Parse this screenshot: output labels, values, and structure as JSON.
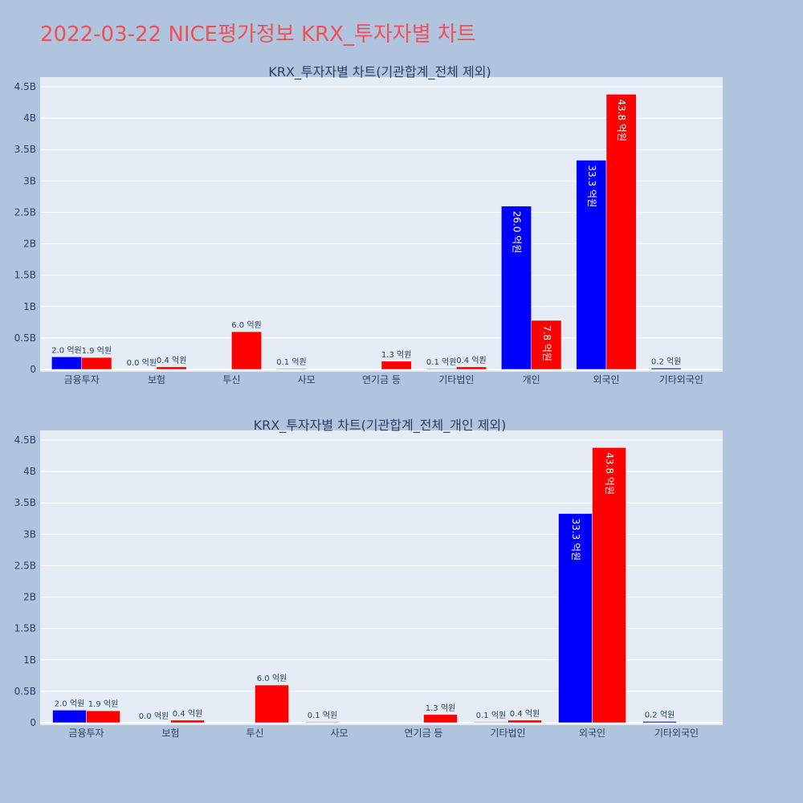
{
  "title": "2022-03-22 NICE평가정보 KRX_투자자별 차트",
  "colors": {
    "buy": "#0000ff",
    "sell": "#ff0000",
    "plot_bg": "#e5ecf6",
    "page_bg": "#b0c4de"
  },
  "chart_data": [
    {
      "type": "bar",
      "title": "KRX_투자자별 차트(기관합계_전체 제외)",
      "categories": [
        "금융투자",
        "보험",
        "투신",
        "사모",
        "연기금 등",
        "기타법인",
        "개인",
        "외국인",
        "기타외국인"
      ],
      "ylim": [
        0,
        4500000000
      ],
      "yticks": [
        0,
        500000000,
        1000000000,
        1500000000,
        2000000000,
        2500000000,
        3000000000,
        3500000000,
        4000000000,
        4500000000
      ],
      "ytick_labels": [
        "0",
        "0.5B",
        "1B",
        "1.5B",
        "2B",
        "2.5B",
        "3B",
        "3.5B",
        "4B",
        "4.5B"
      ],
      "grid": true,
      "series": [
        {
          "color": "#0000ff",
          "values": [
            200000000,
            0,
            null,
            10000000,
            null,
            10000000,
            2600000000,
            3330000000,
            20000000
          ],
          "labels": [
            "2.0 억원",
            "0.0 억원",
            "",
            "0.1 억원",
            "",
            "0.1 억원",
            "26.0 억원",
            "33.3 억원",
            "0.2 억원"
          ]
        },
        {
          "color": "#ff0000",
          "values": [
            190000000,
            40000000,
            600000000,
            null,
            130000000,
            40000000,
            780000000,
            4380000000,
            null
          ],
          "labels": [
            "1.9 억원",
            "0.4 억원",
            "6.0 억원",
            "",
            "1.3 억원",
            "0.4 억원",
            "7.8 억원",
            "43.8 억원",
            ""
          ]
        }
      ]
    },
    {
      "type": "bar",
      "title": "KRX_투자자별 차트(기관합계_전체_개인 제외)",
      "categories": [
        "금융투자",
        "보험",
        "투신",
        "사모",
        "연기금 등",
        "기타법인",
        "외국인",
        "기타외국인"
      ],
      "ylim": [
        0,
        4500000000
      ],
      "yticks": [
        0,
        500000000,
        1000000000,
        1500000000,
        2000000000,
        2500000000,
        3000000000,
        3500000000,
        4000000000,
        4500000000
      ],
      "ytick_labels": [
        "0",
        "0.5B",
        "1B",
        "1.5B",
        "2B",
        "2.5B",
        "3B",
        "3.5B",
        "4B",
        "4.5B"
      ],
      "grid": true,
      "series": [
        {
          "color": "#0000ff",
          "values": [
            200000000,
            0,
            null,
            10000000,
            null,
            10000000,
            3330000000,
            20000000
          ],
          "labels": [
            "2.0 억원",
            "0.0 억원",
            "",
            "0.1 억원",
            "",
            "0.1 억원",
            "33.3 억원",
            "0.2 억원"
          ]
        },
        {
          "color": "#ff0000",
          "values": [
            190000000,
            40000000,
            600000000,
            null,
            130000000,
            40000000,
            4380000000,
            null
          ],
          "labels": [
            "1.9 억원",
            "0.4 억원",
            "6.0 억원",
            "",
            "1.3 억원",
            "0.4 억원",
            "43.8 억원",
            ""
          ]
        }
      ]
    }
  ]
}
